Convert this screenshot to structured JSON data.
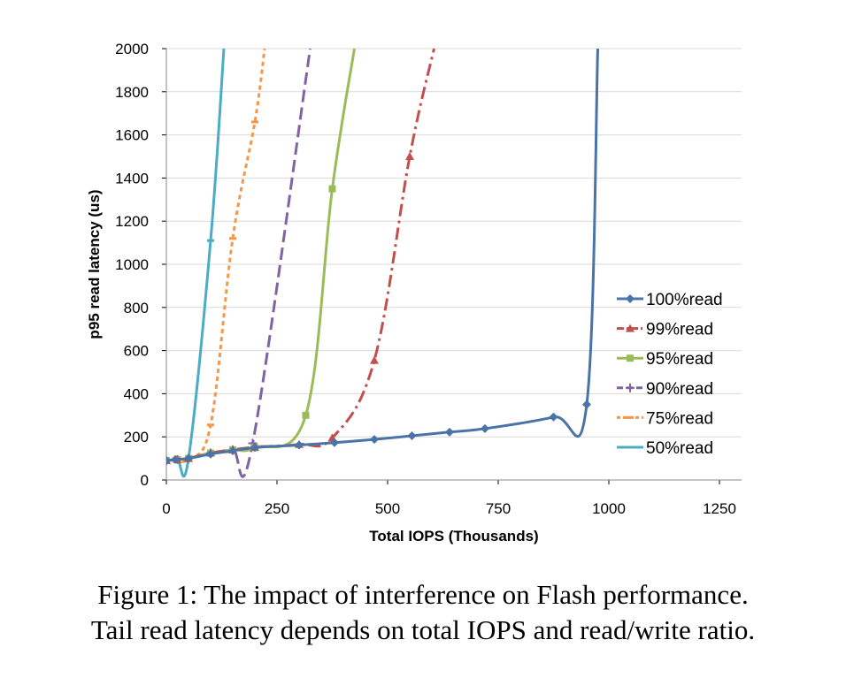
{
  "caption": {
    "line1": "Figure 1: The impact of interference on Flash performance.",
    "line2": "Tail read latency depends on total IOPS and read/write ratio."
  },
  "chart_data": {
    "type": "line",
    "title": "",
    "xlabel": "Total IOPS (Thousands)",
    "ylabel": "p95 read latency (us)",
    "xlim": [
      0,
      1300
    ],
    "ylim": [
      0,
      2000
    ],
    "xticks": [
      0,
      250,
      500,
      750,
      1000,
      1250
    ],
    "yticks": [
      0,
      200,
      400,
      600,
      800,
      1000,
      1200,
      1400,
      1600,
      1800,
      2000
    ],
    "grid": "horizontal",
    "legend_position": "right",
    "series": [
      {
        "name": "100%read",
        "color": "#4A73A8",
        "dash": "solid",
        "marker": "diamond",
        "points": [
          [
            0,
            90
          ],
          [
            20,
            95
          ],
          [
            50,
            100
          ],
          [
            100,
            120
          ],
          [
            150,
            135
          ],
          [
            200,
            150
          ],
          [
            300,
            162
          ],
          [
            380,
            173
          ],
          [
            470,
            188
          ],
          [
            555,
            205
          ],
          [
            640,
            222
          ],
          [
            720,
            238
          ],
          [
            875,
            292
          ],
          [
            950,
            350
          ],
          [
            975,
            2000
          ]
        ]
      },
      {
        "name": "99%read",
        "color": "#C0504D",
        "dash": "dashdot",
        "marker": "triangle",
        "points": [
          [
            0,
            90
          ],
          [
            25,
            95
          ],
          [
            50,
            100
          ],
          [
            100,
            125
          ],
          [
            150,
            140
          ],
          [
            200,
            152
          ],
          [
            300,
            165
          ],
          [
            375,
            195
          ],
          [
            470,
            555
          ],
          [
            550,
            1500
          ],
          [
            605,
            2000
          ]
        ]
      },
      {
        "name": "95%read",
        "color": "#9BBB59",
        "dash": "solid",
        "marker": "square",
        "points": [
          [
            0,
            90
          ],
          [
            25,
            95
          ],
          [
            50,
            100
          ],
          [
            100,
            125
          ],
          [
            150,
            140
          ],
          [
            200,
            150
          ],
          [
            315,
            300
          ],
          [
            375,
            1350
          ],
          [
            425,
            2000
          ]
        ]
      },
      {
        "name": "90%read",
        "color": "#8064A2",
        "dash": "dashed",
        "marker": "plus",
        "points": [
          [
            0,
            90
          ],
          [
            25,
            95
          ],
          [
            50,
            100
          ],
          [
            100,
            125
          ],
          [
            150,
            140
          ],
          [
            195,
            170
          ],
          [
            325,
            2000
          ]
        ]
      },
      {
        "name": "75%read",
        "color": "#F79646",
        "dash": "dotted",
        "marker": "dash",
        "points": [
          [
            0,
            90
          ],
          [
            25,
            92
          ],
          [
            50,
            100
          ],
          [
            100,
            255
          ],
          [
            150,
            1120
          ],
          [
            200,
            1660
          ],
          [
            222,
            2000
          ]
        ]
      },
      {
        "name": "50%read",
        "color": "#4BACC6",
        "dash": "solid",
        "marker": "dash",
        "points": [
          [
            0,
            90
          ],
          [
            25,
            92
          ],
          [
            50,
            100
          ],
          [
            100,
            1110
          ],
          [
            130,
            2000
          ]
        ]
      }
    ]
  }
}
